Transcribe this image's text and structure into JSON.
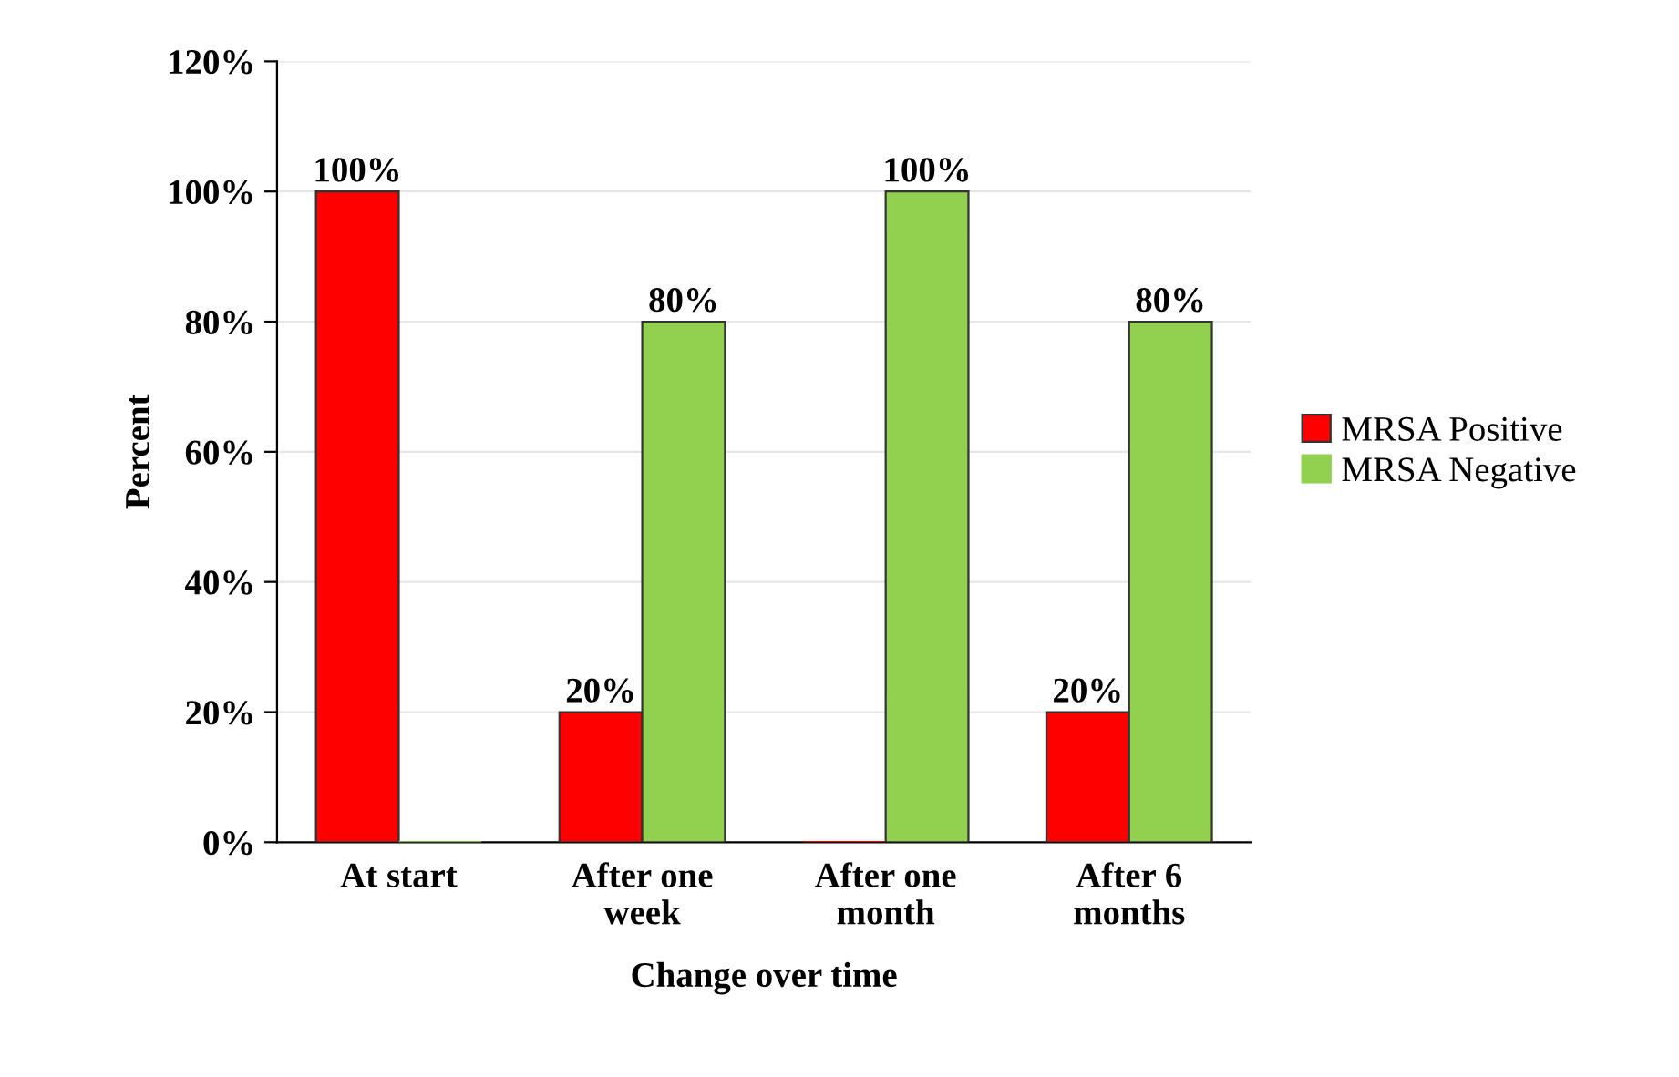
{
  "chart_data": {
    "type": "bar",
    "xlabel": "Change over time",
    "ylabel": "Percent",
    "categories": [
      "At start",
      "After one\nweek",
      "After one\nmonth",
      "After 6\nmonths"
    ],
    "series": [
      {
        "name": "MRSA Positive",
        "color": "#ff0000",
        "values": [
          100,
          20,
          0,
          20
        ],
        "value_labels": [
          "100%",
          "20%",
          null,
          "20%"
        ]
      },
      {
        "name": "MRSA Negative",
        "color": "#92d050",
        "values": [
          0,
          80,
          100,
          80
        ],
        "value_labels": [
          null,
          "80%",
          "100%",
          "80%"
        ]
      }
    ],
    "ylim": [
      0,
      120
    ],
    "yticks": [
      {
        "value": 0,
        "label": "0%"
      },
      {
        "value": 20,
        "label": "20%"
      },
      {
        "value": 40,
        "label": "40%"
      },
      {
        "value": 60,
        "label": "60%"
      },
      {
        "value": 80,
        "label": "80%"
      },
      {
        "value": 100,
        "label": "100%"
      },
      {
        "value": 120,
        "label": "120%"
      }
    ],
    "grid": "y",
    "legend": "right"
  }
}
